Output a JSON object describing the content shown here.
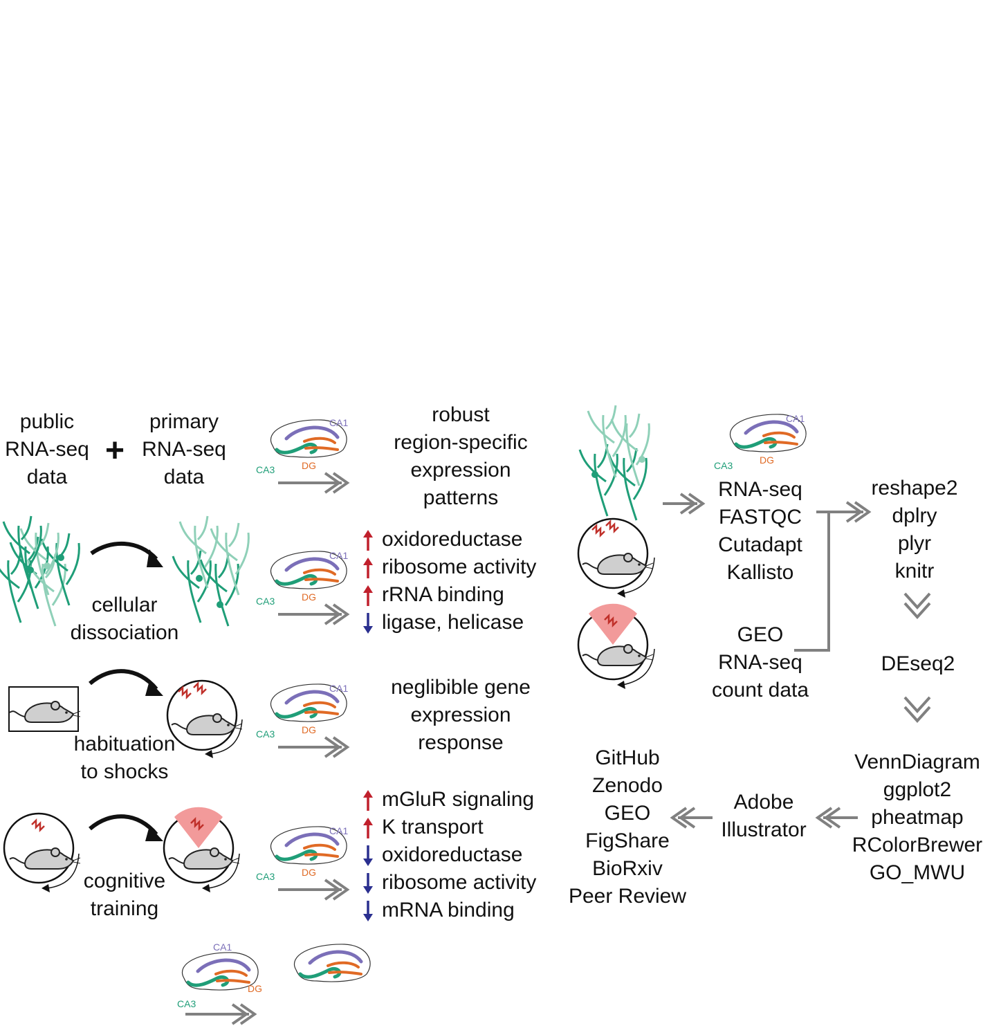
{
  "colors": {
    "ca1": "#7b6fb8",
    "ca3": "#1f9e78",
    "dg": "#e06a25",
    "neuron_dark": "#1f9e78",
    "neuron_light": "#8fd0b8",
    "mouse_fill": "#cfcfcf",
    "shock": "#c0302a",
    "shock_zone": "#f29a9a",
    "arrow_gray": "#808080",
    "up_arrow": "#c0202c",
    "down_arrow": "#2a2f8f"
  },
  "labels": {
    "public": [
      "public",
      "RNA-seq",
      "data"
    ],
    "plus": "+",
    "primary": [
      "primary",
      "RNA-seq",
      "data"
    ],
    "cellular": [
      "cellular",
      "dissociation"
    ],
    "habituation": [
      "habituation",
      "to shocks"
    ],
    "cognitive": [
      "cognitive",
      "training"
    ]
  },
  "regions": {
    "ca1": "CA1",
    "ca3": "CA3",
    "dg": "DG"
  },
  "results": {
    "robust": [
      "robust",
      "region-specific",
      "expression",
      "patterns"
    ],
    "dissociation": [
      {
        "dir": "up",
        "text": "oxidoreductase"
      },
      {
        "dir": "up",
        "text": "ribosome activity"
      },
      {
        "dir": "up",
        "text": "rRNA binding"
      },
      {
        "dir": "down",
        "text": "ligase, helicase"
      }
    ],
    "negligible": [
      "neglibible gene",
      "expression",
      "response"
    ],
    "training": [
      {
        "dir": "up",
        "text": "mGluR signaling"
      },
      {
        "dir": "up",
        "text": "K  transport"
      },
      {
        "dir": "down",
        "text": "oxidoreductase"
      },
      {
        "dir": "down",
        "text": "ribosome activity"
      },
      {
        "dir": "down",
        "text": "mRNA binding"
      }
    ]
  },
  "workflow": {
    "processing": [
      "RNA-seq",
      "FASTQC",
      "Cutadapt",
      "Kallisto"
    ],
    "geo": [
      "GEO",
      "RNA-seq",
      "count data"
    ],
    "r_tidy": [
      "reshape2",
      "dplry",
      "plyr",
      "knitr"
    ],
    "deseq": "DEseq2",
    "viz": [
      "VennDiagram",
      "ggplot2",
      "pheatmap",
      "RColorBrewer",
      "GO_MWU"
    ],
    "adobe": [
      "Adobe",
      "Illustrator"
    ],
    "sharing": [
      "GitHub",
      "Zenodo",
      "GEO",
      "FigShare",
      "BioRxiv",
      "Peer Review"
    ]
  }
}
